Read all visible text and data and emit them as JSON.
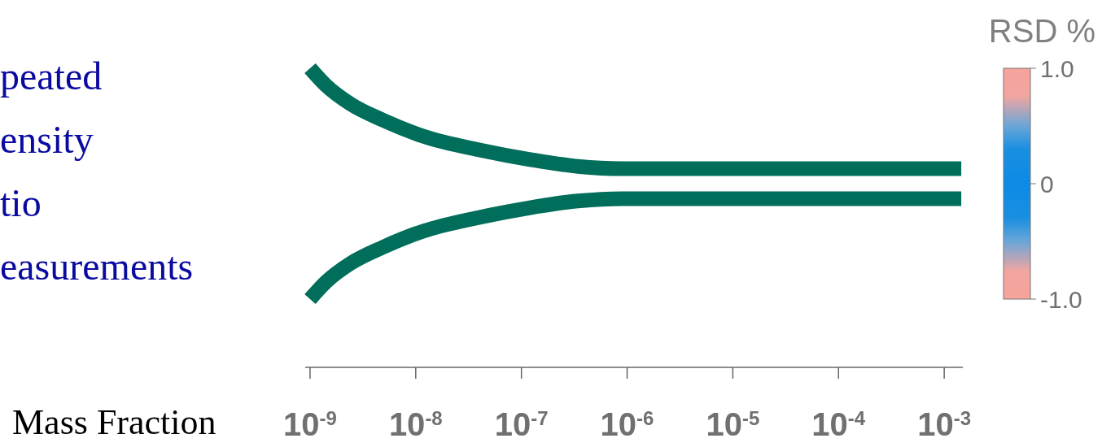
{
  "chart_data": {
    "type": "line",
    "log": "x",
    "xlabel": "Mass Fraction",
    "ylabel": "peated\nensity\ntio\neasurements",
    "y2label": "RSD %",
    "y2lim": [
      -1,
      1
    ],
    "y2ticks": [
      {
        "value": 1,
        "label": "1.0"
      },
      0,
      {
        "value": -1,
        "label": "-1.0"
      }
    ],
    "xlim": [
      9e-10,
      0.0015
    ],
    "xticks": [
      {
        "value": 1e-09,
        "label": "10$^{-9}$"
      },
      {
        "value": 1e-08,
        "label": "10$^{-8}$"
      },
      {
        "value": 1e-07,
        "label": "10$^{-7}$"
      },
      {
        "value": 1e-06,
        "label": "10$^{-6}$"
      },
      {
        "value": 1e-05,
        "label": "10$^{-5}$"
      },
      {
        "value": 0.0001,
        "label": "10$^{-4}$"
      },
      {
        "value": 0.001,
        "label": "10$^{-3}$"
      }
    ],
    "x": [
      1e-09,
      1.42e-09,
      2.42e-09,
      4.91e-09,
      1.19e-08,
      4.09e-08,
      1.18e-07,
      3.41e-07,
      9e-07,
      0.00145
    ],
    "series": [
      {
        "color": "#006e5a",
        "axis": "y2",
        "values": [
          1,
          0.85,
          0.69,
          0.55,
          0.41,
          0.29,
          0.21,
          0.15,
          0.13,
          0.13
        ]
      },
      {
        "color": "#006e5a",
        "axis": "y2",
        "values": [
          -1,
          -0.85,
          -0.69,
          -0.55,
          -0.41,
          -0.29,
          -0.21,
          -0.15,
          -0.13,
          -0.13
        ]
      }
    ]
  }
}
